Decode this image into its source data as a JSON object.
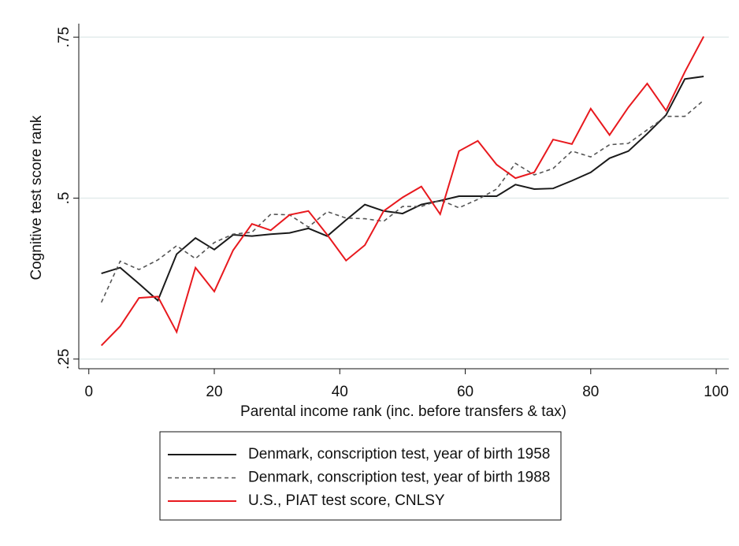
{
  "chart_data": {
    "type": "line",
    "x_label": "Parental income rank (inc. before transfers & tax)",
    "y_label": "Cognitive test score rank",
    "x": [
      2,
      5,
      8,
      11,
      14,
      17,
      20,
      23,
      26,
      29,
      32,
      35,
      38,
      41,
      44,
      47,
      50,
      53,
      56,
      59,
      62,
      65,
      68,
      71,
      74,
      77,
      80,
      83,
      86,
      89,
      92,
      95,
      98
    ],
    "series": [
      {
        "name": "Denmark, conscription test, year of birth 1958",
        "color": "#1a1a1a",
        "line_style": "solid",
        "values": [
          0.383,
          0.392,
          0.367,
          0.341,
          0.413,
          0.438,
          0.42,
          0.443,
          0.441,
          0.444,
          0.446,
          0.453,
          0.441,
          0.466,
          0.49,
          0.48,
          0.476,
          0.49,
          0.496,
          0.503,
          0.503,
          0.503,
          0.521,
          0.514,
          0.515,
          0.527,
          0.54,
          0.562,
          0.573,
          0.6,
          0.629,
          0.685,
          0.689
        ]
      },
      {
        "name": "Denmark, conscription test, year of birth 1988",
        "color": "#555555",
        "line_style": "dashed",
        "values": [
          0.338,
          0.402,
          0.389,
          0.404,
          0.426,
          0.406,
          0.431,
          0.444,
          0.447,
          0.475,
          0.474,
          0.455,
          0.479,
          0.469,
          0.468,
          0.464,
          0.487,
          0.487,
          0.497,
          0.485,
          0.498,
          0.514,
          0.554,
          0.536,
          0.546,
          0.573,
          0.564,
          0.583,
          0.585,
          0.606,
          0.627,
          0.627,
          0.652
        ]
      },
      {
        "name": "U.S., PIAT test score, CNLSY",
        "color": "#e8191e",
        "line_style": "solid",
        "values": [
          0.271,
          0.301,
          0.345,
          0.347,
          0.292,
          0.392,
          0.355,
          0.419,
          0.46,
          0.45,
          0.474,
          0.48,
          0.443,
          0.403,
          0.427,
          0.48,
          0.501,
          0.518,
          0.475,
          0.573,
          0.589,
          0.552,
          0.531,
          0.54,
          0.591,
          0.584,
          0.639,
          0.598,
          0.641,
          0.678,
          0.636,
          0.696,
          0.751
        ]
      }
    ],
    "xlim": [
      -1.6,
      102
    ],
    "ylim": [
      0.235,
      0.771
    ],
    "xticks": [
      0,
      20,
      40,
      60,
      80,
      100
    ],
    "yticks": [
      {
        "value": 0.25,
        "label": ".25"
      },
      {
        "value": 0.5,
        "label": ".5"
      },
      {
        "value": 0.75,
        "label": ".75"
      }
    ],
    "grid": true,
    "legend": "bottom"
  }
}
